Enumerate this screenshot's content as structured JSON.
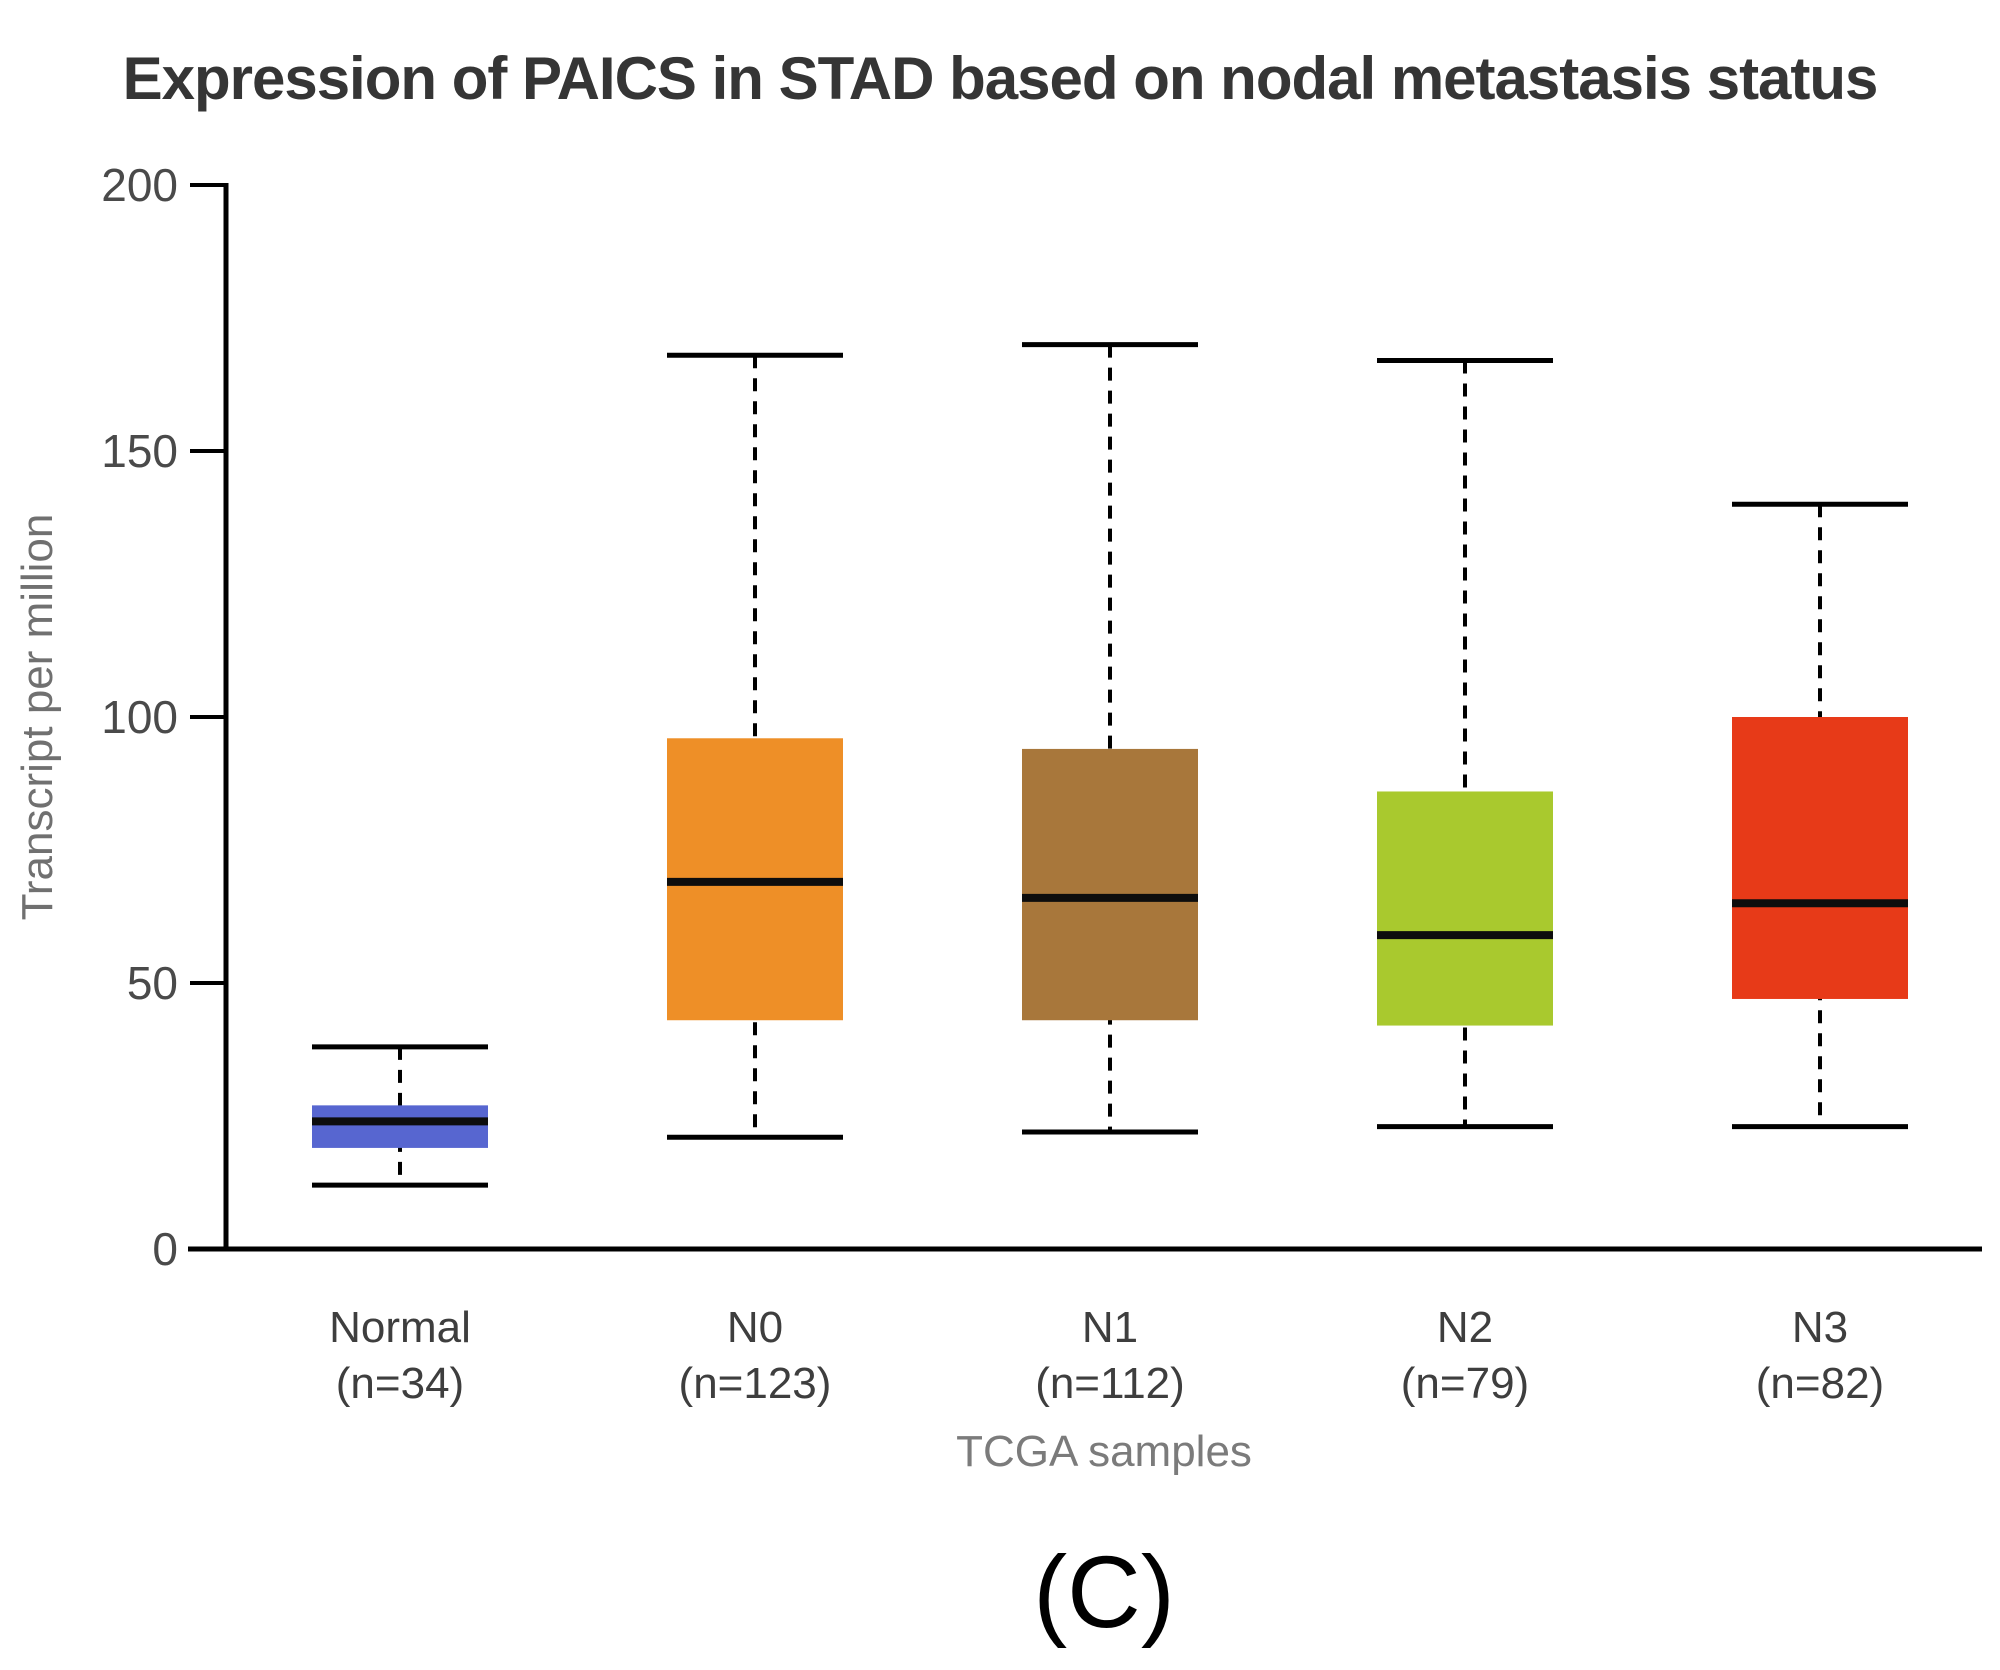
{
  "page": {
    "caption": "(C)"
  },
  "chart_data": {
    "type": "box",
    "title": "Expression of PAICS in STAD based on nodal metastasis status",
    "xlabel": "TCGA samples",
    "ylabel": "Transcript per million",
    "ylim": [
      0,
      200
    ],
    "yticks": [
      0,
      50,
      100,
      150,
      200
    ],
    "grid": false,
    "legend": "none",
    "categories": [
      "Normal",
      "N0",
      "N1",
      "N2",
      "N3"
    ],
    "series": [
      {
        "name": "Normal",
        "count_label": "(n=34)",
        "n": 34,
        "min": 12,
        "q1": 19,
        "median": 24,
        "q3": 27,
        "max": 38,
        "color": "#5766d0"
      },
      {
        "name": "N0",
        "count_label": "(n=123)",
        "n": 123,
        "min": 21,
        "q1": 43,
        "median": 69,
        "q3": 96,
        "max": 168,
        "color": "#ee8f27"
      },
      {
        "name": "N1",
        "count_label": "(n=112)",
        "n": 112,
        "min": 22,
        "q1": 43,
        "median": 66,
        "q3": 94,
        "max": 170,
        "color": "#a8773b"
      },
      {
        "name": "N2",
        "count_label": "(n=79)",
        "n": 79,
        "min": 23,
        "q1": 42,
        "median": 59,
        "q3": 86,
        "max": 167,
        "color": "#a9c92e"
      },
      {
        "name": "N3",
        "count_label": "(n=82)",
        "n": 82,
        "min": 23,
        "q1": 47,
        "median": 65,
        "q3": 100,
        "max": 140,
        "color": "#e73a18"
      }
    ],
    "colors": {
      "axis": "#000000",
      "whisker": "#000000",
      "median_line": "#0d0d0d",
      "title_text": "#353535",
      "tick_text": "#4a4a4a",
      "axis_label_text": "#707070",
      "category_text": "#3e3e3e",
      "xlabel_text": "#7b7b7b",
      "caption_text": "#000000"
    }
  }
}
